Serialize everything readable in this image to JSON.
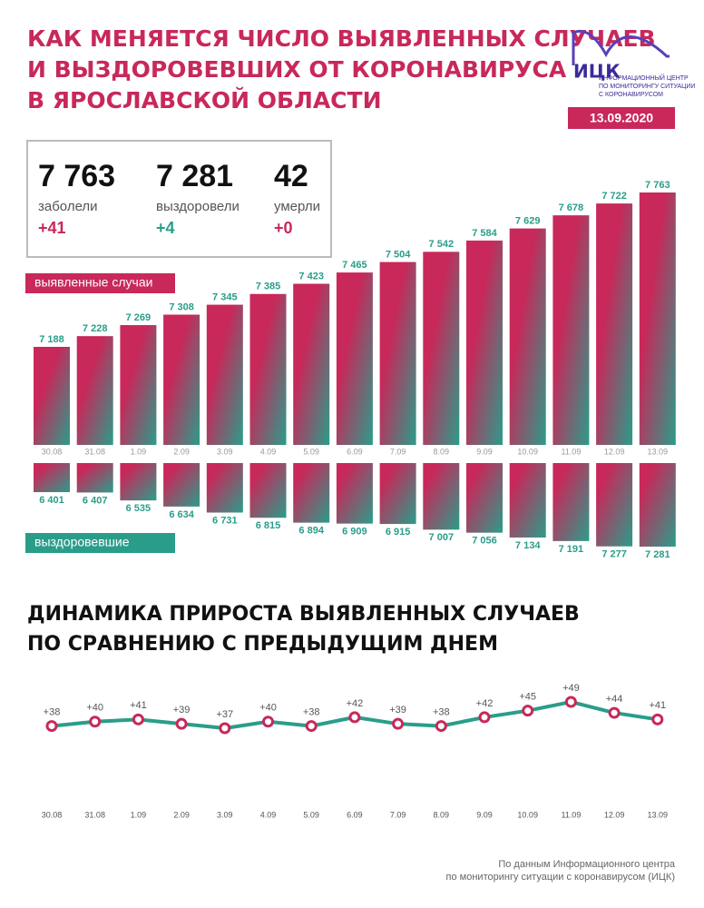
{
  "header": {
    "title": [
      "КАК МЕНЯЕТСЯ ЧИСЛО ВЫЯВЛЕННЫХ СЛУЧАЕВ",
      "И ВЫЗДОРОВЕВШИХ ОТ КОРОНАВИРУСА",
      "В ЯРОСЛАВСКОЙ ОБЛАСТИ"
    ],
    "logo": "ИЦК",
    "logo_caption": [
      "ИНФОРМАЦИОННЫЙ ЦЕНТР",
      "ПО МОНИТОРИНГУ СИТУАЦИИ",
      "С КОРОНАВИРУСОМ"
    ],
    "date": "13.09.2020"
  },
  "stats": [
    {
      "value": "7 763",
      "label": "заболели",
      "delta": "+41"
    },
    {
      "value": "7 281",
      "label": "выздоровели",
      "delta": "+4"
    },
    {
      "value": "42",
      "label": "умерли",
      "delta": "+0"
    }
  ],
  "chart_data": [
    {
      "type": "bar",
      "categories": [
        "30.08",
        "31.08",
        "1.09",
        "2.09",
        "3.09",
        "4.09",
        "5.09",
        "6.09",
        "7.09",
        "8.09",
        "9.09",
        "10.09",
        "11.09",
        "12.09",
        "13.09"
      ],
      "series": [
        {
          "name": "выявленные случаи",
          "color": "#c8285a",
          "values": [
            7188,
            7228,
            7269,
            7308,
            7345,
            7385,
            7423,
            7465,
            7504,
            7542,
            7584,
            7629,
            7678,
            7722,
            7763
          ],
          "value_labels": [
            "7 188",
            "7 228",
            "7 269",
            "7 308",
            "7 345",
            "7 385",
            "7 423",
            "7 465",
            "7 504",
            "7 542",
            "7 584",
            "7 629",
            "7 678",
            "7 722",
            "7 763"
          ]
        },
        {
          "name": "выздоровевшие",
          "color": "#2a9d8a",
          "values": [
            6401,
            6407,
            6535,
            6634,
            6731,
            6815,
            6894,
            6909,
            6915,
            7007,
            7056,
            7134,
            7191,
            7277,
            7281
          ],
          "value_labels": [
            "6 401",
            "6 407",
            "6 535",
            "6 634",
            "6 731",
            "6 815",
            "6 894",
            "6 909",
            "6 915",
            "7 007",
            "7 056",
            "7 134",
            "7 191",
            "7 277",
            "7 281"
          ]
        }
      ]
    },
    {
      "type": "line",
      "title": [
        "ДИНАМИКА ПРИРОСТА ВЫЯВЛЕННЫХ СЛУЧАЕВ",
        "ПО СРАВНЕНИЮ С ПРЕДЫДУЩИМ ДНЕМ"
      ],
      "categories": [
        "30.08",
        "31.08",
        "1.09",
        "2.09",
        "3.09",
        "4.09",
        "5.09",
        "6.09",
        "7.09",
        "8.09",
        "9.09",
        "10.09",
        "11.09",
        "12.09",
        "13.09"
      ],
      "values": [
        38,
        40,
        41,
        39,
        37,
        40,
        38,
        42,
        39,
        38,
        42,
        45,
        49,
        44,
        41
      ],
      "value_labels": [
        "+38",
        "+40",
        "+41",
        "+39",
        "+37",
        "+40",
        "+38",
        "+42",
        "+39",
        "+38",
        "+42",
        "+45",
        "+49",
        "+44",
        "+41"
      ],
      "color": "#2a9d8a",
      "marker_color": "#c8285a"
    }
  ],
  "footer": [
    "По данным Информационного центра",
    "по мониторингу ситуации с коронавирусом (ИЦК)"
  ]
}
